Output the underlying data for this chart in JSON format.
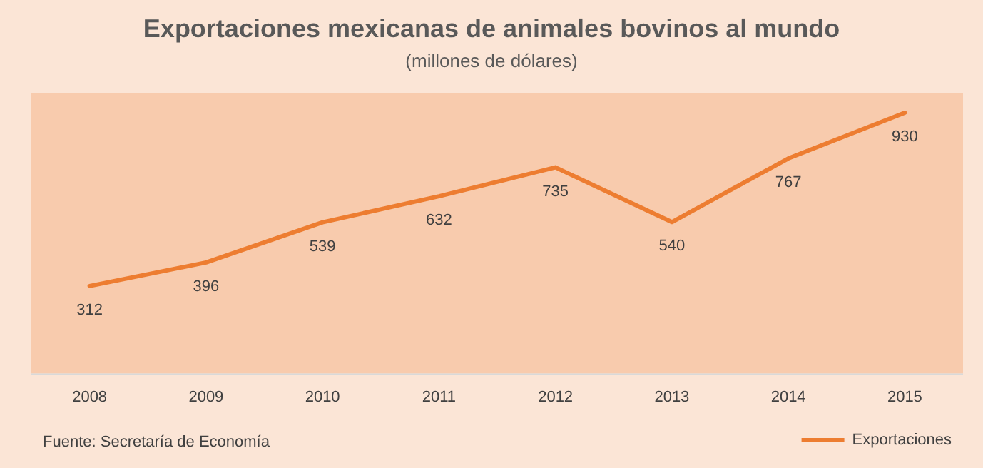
{
  "chart_data": {
    "type": "line",
    "title": "Exportaciones mexicanas de animales bovinos al mundo",
    "subtitle": "(millones de dólares)",
    "categories": [
      "2008",
      "2009",
      "2010",
      "2011",
      "2012",
      "2013",
      "2014",
      "2015"
    ],
    "series": [
      {
        "name": "Exportaciones",
        "color": "#ed7d31",
        "values": [
          312,
          396,
          539,
          632,
          735,
          540,
          767,
          930
        ]
      }
    ],
    "ylim": [
      0,
      1000
    ],
    "tick_labels": "x",
    "data_labels": true,
    "grid": false,
    "legend": "bottom right",
    "marker": "none",
    "line_style": "solid",
    "annotations": [
      "Fuente: Secretaría de Economía"
    ]
  }
}
